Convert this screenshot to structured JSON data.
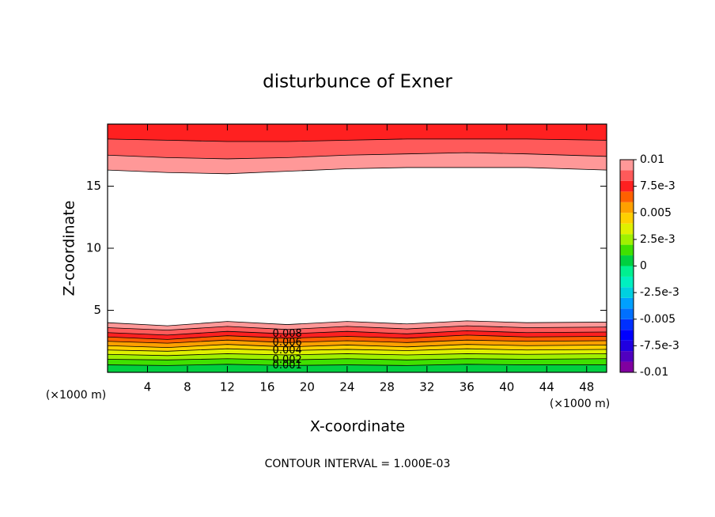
{
  "chart_data": {
    "type": "contour",
    "title": "disturbunce of Exner",
    "xlabel": "X-coordinate",
    "ylabel": "Z-coordinate",
    "xunit": "(×1000 m)",
    "yunit": "(×1000 m)",
    "note": "CONTOUR INTERVAL = 1.000E-03",
    "xlim": [
      0,
      50
    ],
    "ylim": [
      0,
      20
    ],
    "xticks": [
      4,
      8,
      12,
      16,
      20,
      24,
      28,
      32,
      36,
      40,
      44,
      48
    ],
    "yticks": [
      5,
      10,
      15
    ],
    "x": [
      0,
      6,
      12,
      18,
      24,
      30,
      36,
      42,
      50
    ],
    "lower_contours": [
      {
        "level": 0.01,
        "z": [
          4.0,
          3.75,
          4.1,
          3.85,
          4.1,
          3.9,
          4.15,
          4.0,
          4.05
        ]
      },
      {
        "level": 0.009,
        "z": [
          3.6,
          3.4,
          3.7,
          3.45,
          3.7,
          3.5,
          3.75,
          3.6,
          3.65
        ]
      },
      {
        "level": 0.008,
        "z": [
          3.2,
          3.0,
          3.3,
          3.1,
          3.3,
          3.1,
          3.35,
          3.2,
          3.25
        ]
      },
      {
        "level": 0.007,
        "z": [
          2.85,
          2.65,
          2.95,
          2.75,
          2.9,
          2.75,
          3.0,
          2.85,
          2.9
        ]
      },
      {
        "level": 0.006,
        "z": [
          2.5,
          2.35,
          2.6,
          2.4,
          2.55,
          2.4,
          2.6,
          2.5,
          2.55
        ]
      },
      {
        "level": 0.005,
        "z": [
          2.15,
          2.0,
          2.25,
          2.05,
          2.2,
          2.05,
          2.25,
          2.15,
          2.2
        ]
      },
      {
        "level": 0.004,
        "z": [
          1.8,
          1.7,
          1.9,
          1.75,
          1.85,
          1.75,
          1.9,
          1.8,
          1.85
        ]
      },
      {
        "level": 0.003,
        "z": [
          1.45,
          1.35,
          1.5,
          1.4,
          1.5,
          1.4,
          1.5,
          1.45,
          1.5
        ]
      },
      {
        "level": 0.002,
        "z": [
          1.05,
          1.0,
          1.1,
          1.0,
          1.1,
          1.0,
          1.1,
          1.05,
          1.1
        ]
      },
      {
        "level": 0.001,
        "z": [
          0.6,
          0.55,
          0.65,
          0.55,
          0.6,
          0.55,
          0.65,
          0.6,
          0.6
        ]
      }
    ],
    "upper_contours": [
      {
        "level": 0.01,
        "z": [
          16.3,
          16.1,
          16.0,
          16.2,
          16.4,
          16.5,
          16.5,
          16.5,
          16.3
        ]
      },
      {
        "level": 0.009,
        "z": [
          17.5,
          17.3,
          17.2,
          17.3,
          17.5,
          17.6,
          17.7,
          17.6,
          17.4
        ]
      },
      {
        "level": 0.008,
        "z": [
          18.8,
          18.7,
          18.6,
          18.6,
          18.7,
          18.8,
          18.8,
          18.8,
          18.7
        ]
      }
    ],
    "contour_labels": [
      0.008,
      0.006,
      0.004,
      0.002,
      0.001
    ],
    "contour_label_x": 18,
    "colorbar": {
      "clim": [
        -0.01,
        0.01
      ],
      "colors": [
        "#8000a0",
        "#5000c0",
        "#2000e0",
        "#0000ff",
        "#0030ff",
        "#0070ff",
        "#00a0ff",
        "#00d0e0",
        "#00f0c0",
        "#00f090",
        "#00d040",
        "#40e000",
        "#a0f000",
        "#e0f000",
        "#ffd000",
        "#ffa000",
        "#ff6000",
        "#ff2020",
        "#ff5a5a",
        "#ff9898"
      ],
      "ticks": [
        0.01,
        {
          "value": 0.0075,
          "label": "7.5e-3"
        },
        0.005,
        {
          "value": 0.0025,
          "label": "2.5e-3"
        },
        0,
        {
          "value": -0.0025,
          "label": "-2.5e-3"
        },
        -0.005,
        {
          "value": -0.0075,
          "label": "-7.5e-3"
        },
        -0.01
      ]
    }
  }
}
